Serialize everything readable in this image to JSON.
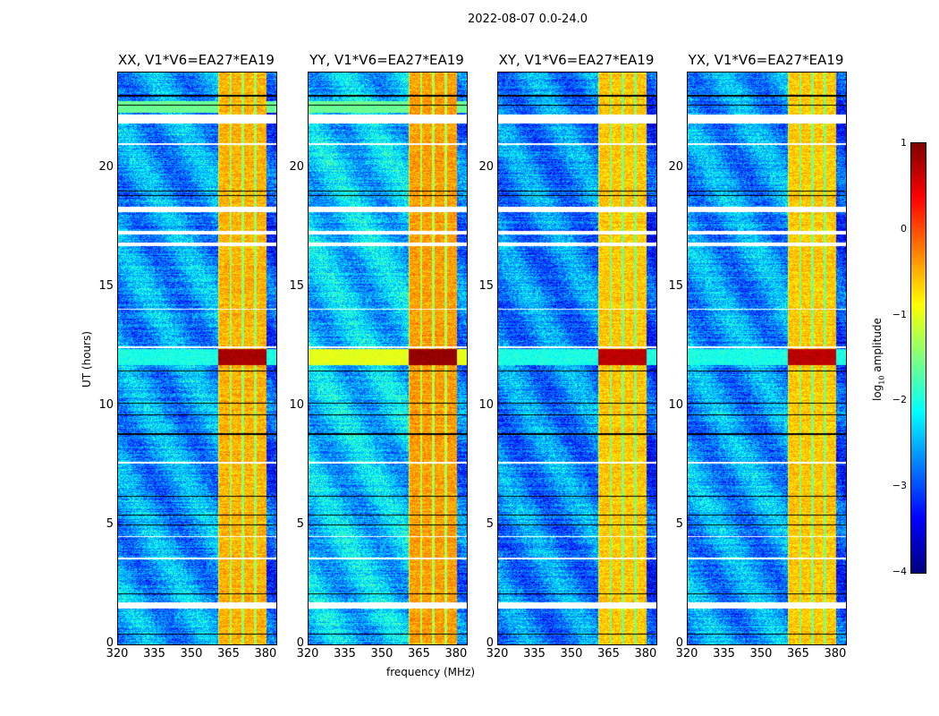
{
  "chart_data": {
    "type": "heatmap",
    "title": "2022-08-07 0.0-24.0",
    "xlabel": "frequency (MHz)",
    "ylabel": "UT (hours)",
    "xlim": [
      320,
      384
    ],
    "ylim": [
      0,
      24
    ],
    "xticks": [
      "320",
      "335",
      "350",
      "365",
      "380"
    ],
    "xtick_values": [
      320,
      335,
      350,
      365,
      380
    ],
    "yticks": [
      "0",
      "5",
      "10",
      "15",
      "20"
    ],
    "ytick_values": [
      0,
      5,
      10,
      15,
      20
    ],
    "panels": [
      {
        "title": "XX, V1*V6=EA27*EA19",
        "background": -2.6,
        "band": -0.5,
        "rfi_block": 0.8
      },
      {
        "title": "YY, V1*V6=EA27*EA19",
        "background": -2.4,
        "band": -0.4,
        "rfi_block": 0.9
      },
      {
        "title": "XY, V1*V6=EA27*EA19",
        "background": -2.7,
        "band": -0.6,
        "rfi_block": 0.7
      },
      {
        "title": "YX, V1*V6=EA27*EA19",
        "background": -2.6,
        "band": -0.6,
        "rfi_block": 0.7
      }
    ],
    "bright_band_mhz": [
      360.5,
      380
    ],
    "band_gaps_mhz": [
      365.5,
      370.5,
      375.5
    ],
    "rfi_block_hours": [
      11.7,
      12.4
    ],
    "flagged_hours": [
      [
        21.85,
        22.25
      ],
      [
        20.95,
        21.05
      ],
      [
        18.15,
        18.35
      ],
      [
        17.2,
        17.35
      ],
      [
        16.7,
        16.85
      ],
      [
        14.05,
        14.1
      ],
      [
        12.45,
        12.5
      ],
      [
        7.6,
        7.65
      ],
      [
        4.5,
        4.55
      ],
      [
        3.55,
        3.65
      ],
      [
        1.5,
        1.75
      ]
    ],
    "zero_hours": [
      [
        23.0,
        23.06
      ],
      [
        22.6,
        22.66
      ],
      [
        19.0,
        19.05
      ],
      [
        18.8,
        18.85
      ],
      [
        11.45,
        11.5
      ],
      [
        10.1,
        10.15
      ],
      [
        9.6,
        9.65
      ],
      [
        8.8,
        8.85
      ],
      [
        6.2,
        6.25
      ],
      [
        5.4,
        5.45
      ],
      [
        5.0,
        5.05
      ],
      [
        2.1,
        2.15
      ],
      [
        0.4,
        0.45
      ]
    ],
    "colorbar": {
      "label_prefix": "log",
      "label_sub": "10",
      "label_suffix": " amplitude",
      "range": [
        -4,
        1
      ],
      "ticks": [
        "1",
        "0",
        "−1",
        "−2",
        "−3",
        "−4"
      ],
      "tick_values": [
        1,
        0,
        -1,
        -2,
        -3,
        -4
      ],
      "colormap": "jet"
    }
  }
}
